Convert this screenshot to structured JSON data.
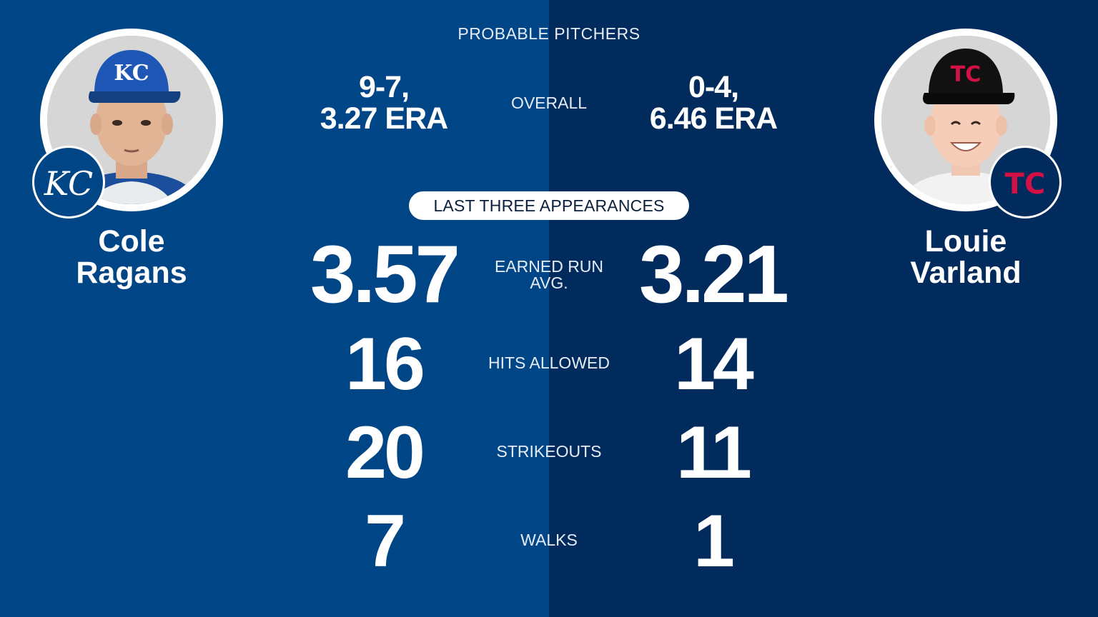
{
  "header": {
    "title": "PROBABLE PITCHERS"
  },
  "overall": {
    "label": "OVERALL",
    "left_line1": "9-7,",
    "left_line2": "3.27 ERA",
    "right_line1": "0-4,",
    "right_line2": "6.46 ERA"
  },
  "section_pill": "LAST THREE APPEARANCES",
  "left_pitcher": {
    "first": "Cole",
    "last": "Ragans",
    "team_logo_icon": "royals-kc-logo-icon"
  },
  "right_pitcher": {
    "first": "Louie",
    "last": "Varland",
    "team_logo_icon": "twins-tc-logo-icon"
  },
  "stats": {
    "era": {
      "label_line1": "EARNED RUN",
      "label_line2": "AVG.",
      "left": "3.57",
      "right": "3.21"
    },
    "hits": {
      "label": "HITS ALLOWED",
      "left": "16",
      "right": "14"
    },
    "strikeouts": {
      "label": "STRIKEOUTS",
      "left": "20",
      "right": "11"
    },
    "walks": {
      "label": "WALKS",
      "left": "7",
      "right": "1"
    }
  },
  "colors": {
    "royals_blue": "#004687",
    "twins_navy": "#002b5c",
    "twins_red": "#d31145"
  }
}
